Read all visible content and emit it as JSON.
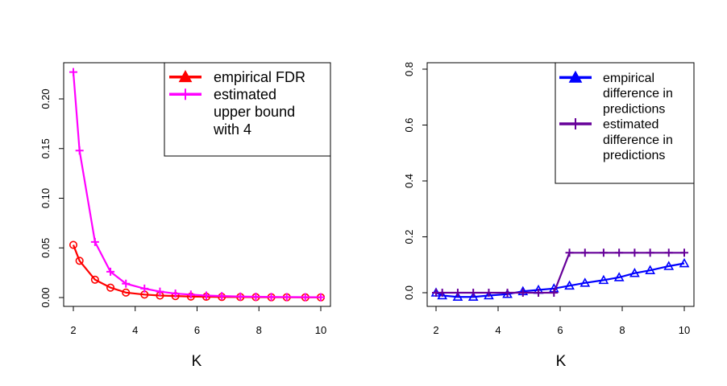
{
  "chart_data": [
    {
      "type": "line",
      "title": "",
      "xlabel": "K",
      "ylabel": "",
      "xlim": [
        2,
        10
      ],
      "ylim": [
        0,
        0.23
      ],
      "xticks": [
        2,
        4,
        6,
        8,
        10
      ],
      "yticks": [
        0.0,
        0.05,
        0.1,
        0.15,
        0.2
      ],
      "ytick_labels": [
        "0.00",
        "0.05",
        "0.10",
        "0.15",
        "0.20"
      ],
      "legend_position": "top-right",
      "grid": false,
      "x": [
        2.0,
        2.2,
        2.7,
        3.2,
        3.7,
        4.3,
        4.8,
        5.3,
        5.8,
        6.3,
        6.8,
        7.4,
        7.9,
        8.4,
        8.9,
        9.5,
        10.0
      ],
      "series": [
        {
          "name": "empirical FDR",
          "color": "#ff0000",
          "marker": "circle",
          "legend_marker": "triangle",
          "values": [
            0.053,
            0.037,
            0.018,
            0.01,
            0.005,
            0.003,
            0.002,
            0.0015,
            0.001,
            0.0008,
            0.0006,
            0.0005,
            0.0004,
            0.0003,
            0.0003,
            0.0002,
            0.0002
          ]
        },
        {
          "name": "estimated upper bound with 4",
          "legend_lines": [
            "estimated",
            "upper bound",
            "with 4"
          ],
          "color": "#ff00ff",
          "marker": "plus",
          "values": [
            0.227,
            0.148,
            0.056,
            0.026,
            0.014,
            0.009,
            0.006,
            0.004,
            0.003,
            0.002,
            0.0015,
            0.001,
            0.0008,
            0.0006,
            0.0005,
            0.0004,
            0.0003
          ]
        }
      ]
    },
    {
      "type": "line",
      "title": "",
      "xlabel": "K",
      "ylabel": "",
      "xlim": [
        2,
        10
      ],
      "ylim": [
        -0.02,
        0.82
      ],
      "xticks": [
        2,
        4,
        6,
        8,
        10
      ],
      "yticks": [
        0.0,
        0.2,
        0.4,
        0.6,
        0.8
      ],
      "ytick_labels": [
        "0.0",
        "0.2",
        "0.4",
        "0.6",
        "0.8"
      ],
      "legend_position": "top-right",
      "grid": false,
      "x": [
        2.0,
        2.2,
        2.7,
        3.2,
        3.7,
        4.3,
        4.8,
        5.3,
        5.8,
        6.3,
        6.8,
        7.4,
        7.9,
        8.4,
        8.9,
        9.5,
        10.0
      ],
      "series": [
        {
          "name": "empirical difference in predictions",
          "legend_lines": [
            "empirical",
            "difference in",
            "predictions"
          ],
          "color": "#0000ff",
          "marker": "triangle",
          "values": [
            0.0,
            -0.01,
            -0.015,
            -0.015,
            -0.01,
            -0.005,
            0.005,
            0.01,
            0.015,
            0.025,
            0.035,
            0.045,
            0.055,
            0.07,
            0.08,
            0.095,
            0.105
          ]
        },
        {
          "name": "estimated difference in predictions",
          "legend_lines": [
            "estimated",
            "difference in",
            "predictions"
          ],
          "color": "#660099",
          "marker": "plus",
          "values": [
            0.0,
            0.0,
            0.0,
            0.0,
            0.0,
            0.0,
            0.0,
            0.0,
            0.0,
            0.143,
            0.143,
            0.143,
            0.143,
            0.143,
            0.143,
            0.143,
            0.143
          ]
        }
      ]
    }
  ]
}
